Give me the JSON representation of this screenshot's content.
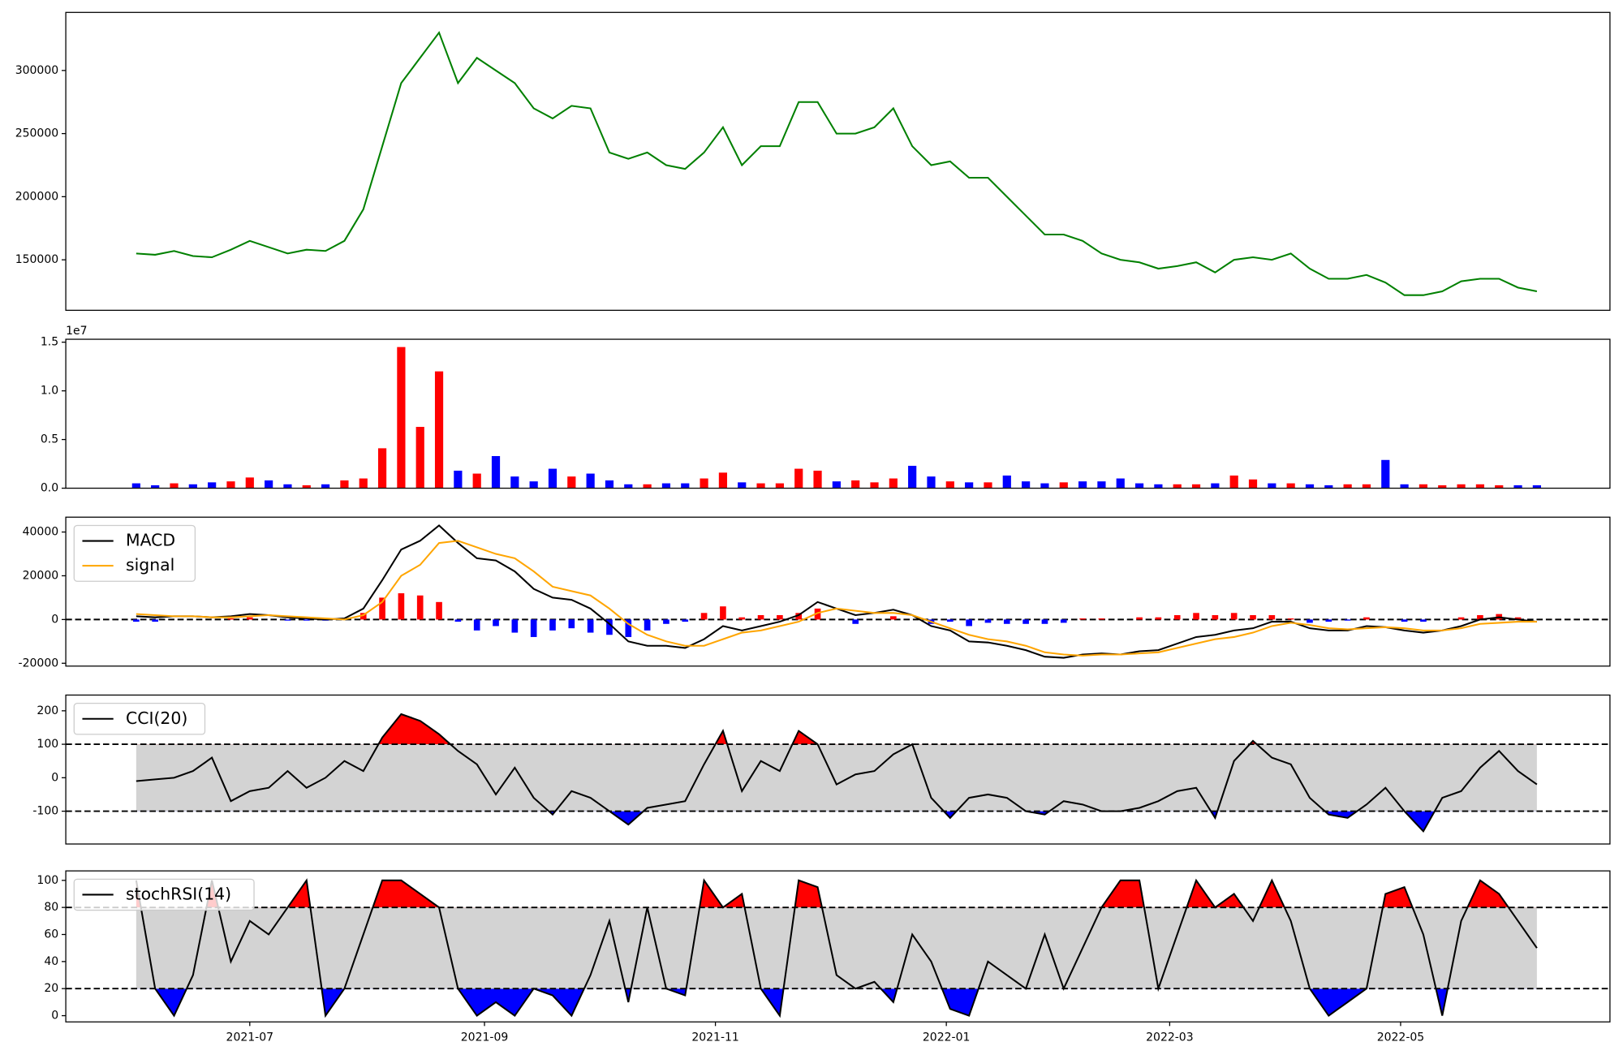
{
  "chart_data": {
    "type": "multi_panel",
    "x": [
      0,
      5,
      10,
      15,
      20,
      25,
      30,
      35,
      40,
      45,
      50,
      55,
      60,
      65,
      70,
      75,
      80,
      85,
      90,
      95,
      100,
      105,
      110,
      115,
      120,
      125,
      130,
      135,
      140,
      145,
      150,
      155,
      160,
      165,
      170,
      175,
      180,
      185,
      190,
      195,
      200,
      205,
      210,
      215,
      220,
      225,
      230,
      235,
      240,
      245,
      250,
      255,
      260,
      265,
      270,
      275,
      280,
      285,
      290,
      295,
      300,
      305,
      310,
      315,
      320,
      325,
      330,
      335,
      340,
      345,
      350,
      355,
      360,
      365,
      370
    ],
    "xlim": [
      -18.6,
      389.3
    ],
    "xticks": [
      {
        "value": 30,
        "label": "2021-07"
      },
      {
        "value": 92,
        "label": "2021-09"
      },
      {
        "value": 153,
        "label": "2021-11"
      },
      {
        "value": 214,
        "label": "2022-01"
      },
      {
        "value": 273,
        "label": "2022-03"
      },
      {
        "value": 334,
        "label": "2022-05"
      }
    ],
    "panels": [
      {
        "type": "line",
        "ylim": [
          110000,
          346000
        ],
        "yticks": [
          150000,
          200000,
          250000,
          300000
        ],
        "series": [
          {
            "kind": "line",
            "color": "green",
            "values": [
              155000,
              154000,
              157000,
              153000,
              152000,
              158000,
              165000,
              160000,
              155000,
              158000,
              157000,
              165000,
              190000,
              240000,
              290000,
              310000,
              330000,
              290000,
              310000,
              300000,
              290000,
              270000,
              262000,
              272000,
              270000,
              235000,
              230000,
              235000,
              225000,
              222000,
              235000,
              255000,
              225000,
              240000,
              240000,
              275000,
              275000,
              250000,
              250000,
              255000,
              270000,
              240000,
              225000,
              228000,
              215000,
              215000,
              200000,
              185000,
              170000,
              170000,
              165000,
              155000,
              150000,
              148000,
              143000,
              145000,
              148000,
              140000,
              150000,
              152000,
              150000,
              155000,
              143000,
              135000,
              135000,
              138000,
              132000,
              122000,
              122000,
              125000,
              133000,
              135000,
              135000,
              128000,
              125000
            ]
          }
        ]
      },
      {
        "type": "bar",
        "ylim": [
          0,
          15300000
        ],
        "offset_label": "1e7",
        "yticks": [
          {
            "value": 0,
            "label": "0.0"
          },
          {
            "value": 5000000,
            "label": "0.5"
          },
          {
            "value": 10000000,
            "label": "1.0"
          },
          {
            "value": 15000000,
            "label": "1.5"
          }
        ],
        "series": [
          {
            "kind": "volume",
            "up_color": "red",
            "down_color": "blue",
            "values": [
              500000,
              300000,
              500000,
              400000,
              600000,
              700000,
              1100000,
              800000,
              400000,
              300000,
              400000,
              800000,
              1000000,
              4100000,
              14500000,
              6300000,
              12000000,
              1800000,
              1500000,
              3300000,
              1200000,
              700000,
              2000000,
              1200000,
              1500000,
              800000,
              400000,
              400000,
              500000,
              500000,
              1000000,
              1600000,
              600000,
              500000,
              500000,
              2000000,
              1800000,
              700000,
              800000,
              600000,
              1000000,
              2300000,
              1200000,
              700000,
              600000,
              600000,
              1300000,
              700000,
              500000,
              600000,
              700000,
              700000,
              1000000,
              500000,
              400000,
              400000,
              400000,
              500000,
              1300000,
              900000,
              500000,
              500000,
              400000,
              300000,
              400000,
              400000,
              2900000,
              400000,
              400000,
              300000,
              400000,
              400000,
              300000,
              300000,
              300000
            ]
          }
        ]
      },
      {
        "type": "macd",
        "ylim": [
          -21300,
          46800
        ],
        "yticks": [
          -20000,
          0,
          20000,
          40000
        ],
        "hlines": [
          0
        ],
        "legend": "upper left",
        "series": [
          {
            "kind": "hist",
            "pos_color": "red",
            "neg_color": "blue",
            "values": [
              -1000,
              -1000,
              0,
              0,
              0,
              500,
              1000,
              0,
              -500,
              -500,
              -500,
              500,
              3000,
              10000,
              12000,
              11000,
              8000,
              -1000,
              -5000,
              -3000,
              -6000,
              -8000,
              -5000,
              -4000,
              -6000,
              -7000,
              -8000,
              -5000,
              -2000,
              -1000,
              3000,
              6000,
              1000,
              2000,
              2000,
              3000,
              5000,
              0,
              -2000,
              0,
              1500,
              0,
              -2000,
              -1000,
              -3000,
              -1500,
              -2000,
              -2000,
              -2000,
              -1500,
              500,
              500,
              0,
              1000,
              1000,
              2000,
              3000,
              2000,
              3000,
              2000,
              2000,
              500,
              -1500,
              -1000,
              -500,
              1000,
              0,
              -1000,
              -1000,
              0,
              1000,
              2000,
              2500,
              1000,
              0
            ]
          },
          {
            "kind": "line",
            "name": "MACD",
            "color": "black",
            "values": [
              1500,
              1000,
              1500,
              1500,
              1000,
              1500,
              2500,
              2000,
              1000,
              500,
              0,
              500,
              5000,
              18000,
              32000,
              36000,
              43000,
              35000,
              28000,
              27000,
              22000,
              14000,
              10000,
              9000,
              5000,
              -2000,
              -10000,
              -12000,
              -12000,
              -13000,
              -9000,
              -3000,
              -5000,
              -3000,
              -1000,
              2000,
              8000,
              5000,
              2000,
              3000,
              4500,
              2000,
              -3000,
              -5000,
              -10000,
              -10500,
              -12000,
              -14000,
              -17000,
              -17500,
              -16000,
              -15500,
              -16000,
              -14500,
              -14000,
              -11000,
              -8000,
              -7000,
              -5000,
              -4000,
              -1000,
              -1000,
              -4000,
              -5000,
              -5000,
              -3000,
              -3500,
              -5000,
              -6000,
              -5000,
              -3000,
              0,
              1000,
              0,
              -1000
            ]
          },
          {
            "kind": "line",
            "name": "signal",
            "color": "orange",
            "values": [
              2500,
              2000,
              1500,
              1500,
              1000,
              1000,
              1500,
              2000,
              1500,
              1000,
              500,
              0,
              2000,
              8000,
              20000,
              25000,
              35000,
              36000,
              33000,
              30000,
              28000,
              22000,
              15000,
              13000,
              11000,
              5000,
              -2000,
              -7000,
              -10000,
              -12000,
              -12000,
              -9000,
              -6000,
              -5000,
              -3000,
              -1000,
              3000,
              5000,
              4000,
              3000,
              3000,
              2000,
              -1000,
              -4000,
              -7000,
              -9000,
              -10000,
              -12000,
              -15000,
              -16000,
              -16500,
              -16000,
              -16000,
              -15500,
              -15000,
              -13000,
              -11000,
              -9000,
              -8000,
              -6000,
              -3000,
              -1500,
              -2500,
              -4000,
              -4500,
              -4000,
              -3500,
              -4000,
              -5000,
              -5000,
              -4000,
              -2000,
              -1500,
              -1000,
              -1000
            ]
          }
        ]
      },
      {
        "type": "oscillator",
        "ylim": [
          -198,
          247
        ],
        "yticks": [
          -100,
          0,
          100,
          200
        ],
        "bands": [
          -100,
          100
        ],
        "band_color": "lightgray",
        "over_color": "red",
        "under_color": "blue",
        "legend": "upper left",
        "series": [
          {
            "kind": "line",
            "name": "CCI(20)",
            "color": "black",
            "values": [
              -10,
              -5,
              0,
              20,
              60,
              -70,
              -40,
              -30,
              20,
              -30,
              0,
              50,
              20,
              120,
              190,
              170,
              130,
              80,
              40,
              -50,
              30,
              -60,
              -110,
              -40,
              -60,
              -100,
              -140,
              -90,
              -80,
              -70,
              40,
              140,
              -40,
              50,
              20,
              140,
              100,
              -20,
              10,
              20,
              70,
              100,
              -60,
              -120,
              -60,
              -50,
              -60,
              -100,
              -110,
              -70,
              -80,
              -100,
              -100,
              -90,
              -70,
              -40,
              -30,
              -120,
              50,
              110,
              60,
              40,
              -60,
              -110,
              -120,
              -80,
              -30,
              -100,
              -160,
              -60,
              -40,
              30,
              80,
              20,
              -20
            ]
          }
        ]
      },
      {
        "type": "oscillator",
        "ylim": [
          -4.6,
          107
        ],
        "yticks": [
          0,
          20,
          40,
          60,
          80,
          100
        ],
        "bands": [
          20,
          80
        ],
        "band_color": "lightgray",
        "over_color": "red",
        "under_color": "blue",
        "legend": "upper left",
        "series": [
          {
            "kind": "line",
            "name": "stochRSI(14)",
            "color": "black",
            "values": [
              100,
              20,
              0,
              30,
              100,
              40,
              70,
              60,
              80,
              100,
              0,
              20,
              60,
              100,
              100,
              90,
              80,
              20,
              0,
              10,
              0,
              20,
              15,
              0,
              30,
              70,
              10,
              80,
              20,
              15,
              100,
              80,
              90,
              20,
              0,
              100,
              95,
              30,
              20,
              25,
              10,
              60,
              40,
              5,
              0,
              40,
              30,
              20,
              60,
              20,
              50,
              80,
              100,
              100,
              20,
              60,
              100,
              80,
              90,
              70,
              100,
              70,
              20,
              0,
              10,
              20,
              90,
              95,
              60,
              0,
              70,
              100,
              90,
              70,
              50
            ]
          }
        ]
      }
    ]
  }
}
